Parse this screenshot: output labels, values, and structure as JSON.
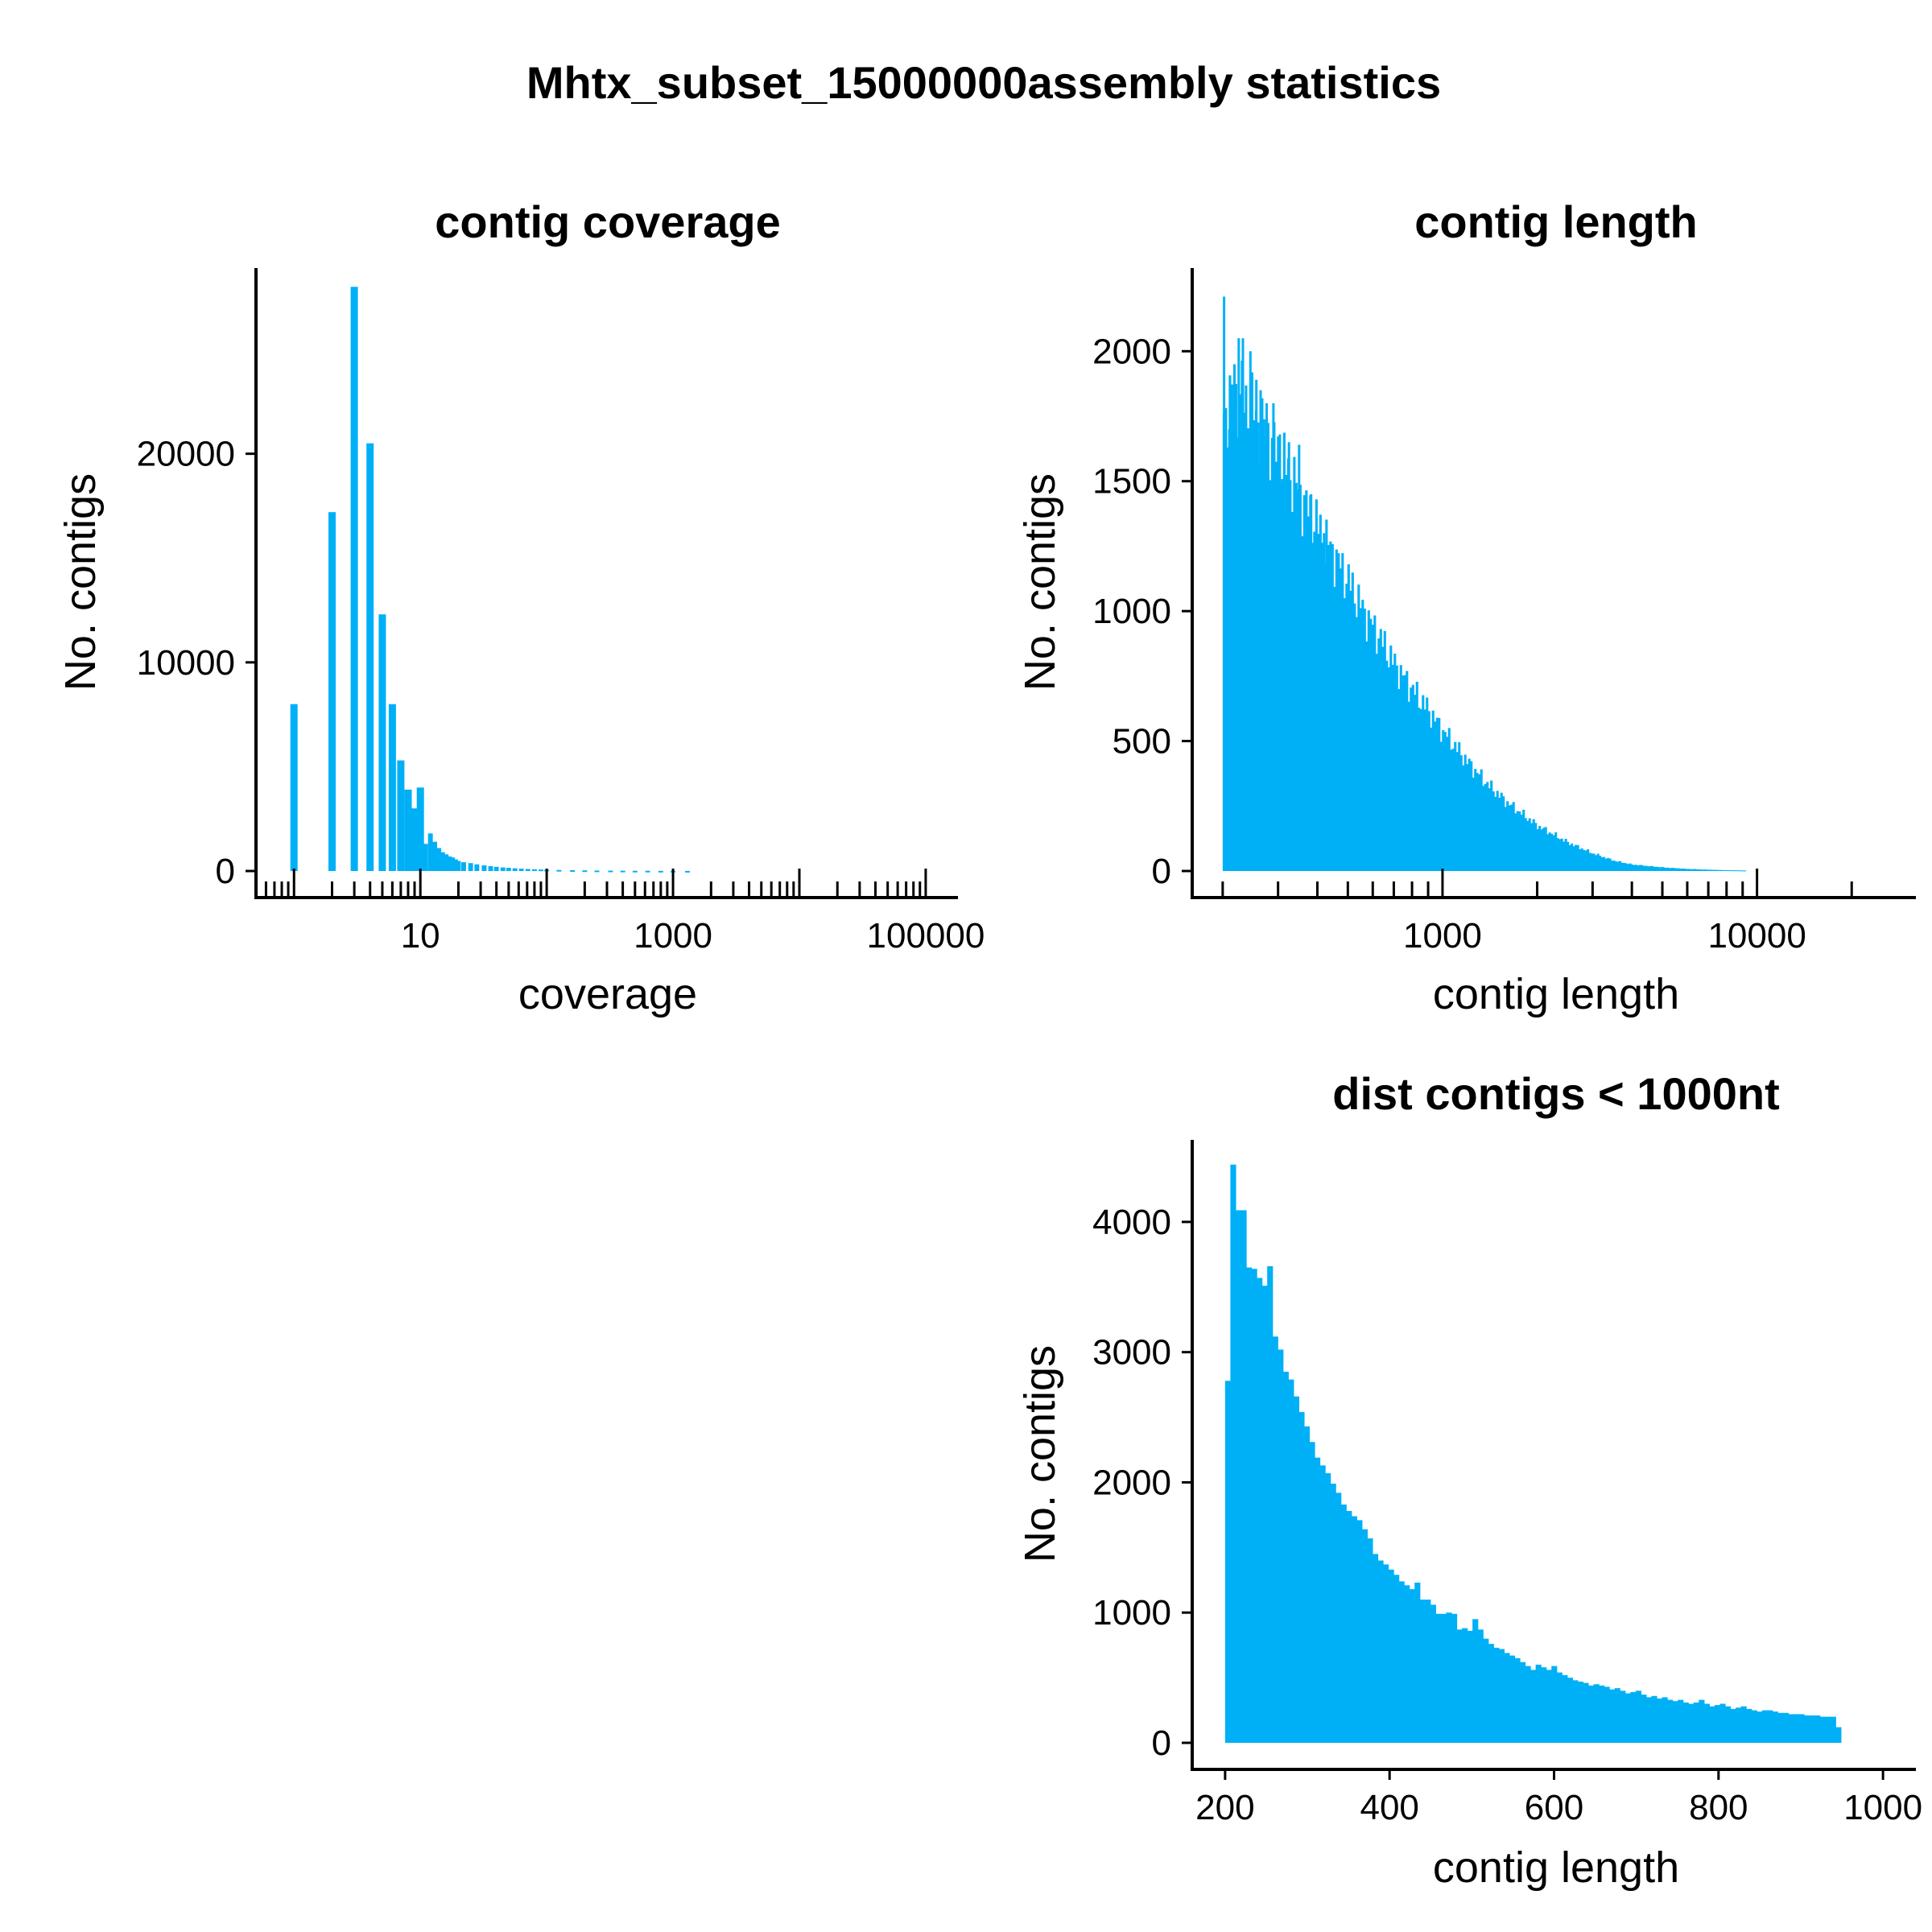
{
  "title": "Mhtx_subset_15000000assembly statistics",
  "colors": {
    "bar": "#00B0F6",
    "axis": "#000000",
    "background": "#FFFFFF"
  },
  "chart_data": [
    {
      "id": "coverage",
      "type": "bar",
      "title": "contig coverage",
      "xlabel": "coverage",
      "ylabel": "No. contigs",
      "x_scale": "log10",
      "xlim": [
        0.5,
        180000
      ],
      "ylim": [
        0,
        28900
      ],
      "x_major_ticks": [
        1,
        10,
        100,
        1000,
        10000,
        100000
      ],
      "x_tick_labels": [
        {
          "value": 10,
          "label": "10"
        },
        {
          "value": 1000,
          "label": "1000"
        },
        {
          "value": 100000,
          "label": "100000"
        }
      ],
      "y_ticks": [
        {
          "value": 0,
          "label": "0"
        },
        {
          "value": 10000,
          "label": "10000"
        },
        {
          "value": 20000,
          "label": "20000"
        }
      ],
      "bars": [
        {
          "x": 1,
          "y": 8000
        },
        {
          "x": 2,
          "y": 17200
        },
        {
          "x": 3,
          "y": 28000
        },
        {
          "x": 4,
          "y": 20500
        },
        {
          "x": 5,
          "y": 12300
        },
        {
          "x": 6,
          "y": 8000
        },
        {
          "x": 7,
          "y": 5300
        },
        {
          "x": 8,
          "y": 3900
        },
        {
          "x": 9,
          "y": 3000
        },
        {
          "x": 10,
          "y": 4000
        },
        {
          "x": 11,
          "y": 1300
        },
        {
          "x": 12,
          "y": 1800
        },
        {
          "x": 13,
          "y": 1400
        },
        {
          "x": 14,
          "y": 1100
        },
        {
          "x": 15,
          "y": 900
        },
        {
          "x": 16,
          "y": 800
        },
        {
          "x": 17,
          "y": 700
        },
        {
          "x": 18,
          "y": 650
        },
        {
          "x": 19,
          "y": 550
        },
        {
          "x": 20,
          "y": 480
        },
        {
          "x": 22,
          "y": 420
        },
        {
          "x": 25,
          "y": 380
        },
        {
          "x": 28,
          "y": 320
        },
        {
          "x": 32,
          "y": 270
        },
        {
          "x": 36,
          "y": 230
        },
        {
          "x": 40,
          "y": 200
        },
        {
          "x": 45,
          "y": 170
        },
        {
          "x": 50,
          "y": 150
        },
        {
          "x": 56,
          "y": 130
        },
        {
          "x": 63,
          "y": 110
        },
        {
          "x": 71,
          "y": 95
        },
        {
          "x": 80,
          "y": 80
        },
        {
          "x": 90,
          "y": 70
        },
        {
          "x": 100,
          "y": 60
        },
        {
          "x": 125,
          "y": 50
        },
        {
          "x": 160,
          "y": 40
        },
        {
          "x": 200,
          "y": 30
        },
        {
          "x": 250,
          "y": 25
        },
        {
          "x": 320,
          "y": 20
        },
        {
          "x": 400,
          "y": 15
        },
        {
          "x": 500,
          "y": 12
        },
        {
          "x": 630,
          "y": 10
        },
        {
          "x": 800,
          "y": 8
        },
        {
          "x": 1000,
          "y": 6
        },
        {
          "x": 1300,
          "y": 4
        }
      ]
    },
    {
      "id": "length",
      "type": "bar",
      "title": "contig length",
      "xlabel": "contig length",
      "ylabel": "No. contigs",
      "x_scale": "log10",
      "xlim": [
        160,
        32000
      ],
      "ylim": [
        0,
        2320
      ],
      "x_major_ticks": [
        1000,
        10000
      ],
      "x_minor_ticks": [
        200,
        300,
        400,
        500,
        600,
        700,
        800,
        900,
        2000,
        3000,
        4000,
        5000,
        6000,
        7000,
        8000,
        9000,
        20000
      ],
      "x_tick_labels": [
        {
          "value": 1000,
          "label": "1000"
        },
        {
          "value": 10000,
          "label": "10000"
        }
      ],
      "y_ticks": [
        {
          "value": 0,
          "label": "0"
        },
        {
          "value": 500,
          "label": "500"
        },
        {
          "value": 1000,
          "label": "1000"
        },
        {
          "value": 1500,
          "label": "1500"
        },
        {
          "value": 2000,
          "label": "2000"
        }
      ],
      "x_start": 200,
      "x_end": 9200,
      "bin_count": 260,
      "profile": [
        [
          200,
          1750
        ],
        [
          210,
          1800
        ],
        [
          230,
          1830
        ],
        [
          250,
          1760
        ],
        [
          270,
          1700
        ],
        [
          300,
          1600
        ],
        [
          330,
          1520
        ],
        [
          360,
          1420
        ],
        [
          400,
          1330
        ],
        [
          450,
          1220
        ],
        [
          500,
          1120
        ],
        [
          560,
          1000
        ],
        [
          630,
          900
        ],
        [
          700,
          800
        ],
        [
          800,
          700
        ],
        [
          900,
          620
        ],
        [
          1000,
          540
        ],
        [
          1200,
          420
        ],
        [
          1400,
          330
        ],
        [
          1600,
          265
        ],
        [
          2000,
          175
        ],
        [
          2500,
          110
        ],
        [
          3000,
          68
        ],
        [
          3500,
          40
        ],
        [
          4000,
          25
        ],
        [
          5000,
          14
        ],
        [
          6000,
          8
        ],
        [
          7000,
          5
        ],
        [
          8000,
          3
        ],
        [
          9200,
          2
        ]
      ],
      "spikes": [
        {
          "x": 202,
          "y": 2210
        },
        {
          "x": 210,
          "y": 1700
        },
        {
          "x": 218,
          "y": 1950
        },
        {
          "x": 225,
          "y": 2050
        },
        {
          "x": 232,
          "y": 2050
        },
        {
          "x": 245,
          "y": 2000
        },
        {
          "x": 256,
          "y": 1890
        },
        {
          "x": 264,
          "y": 1850
        },
        {
          "x": 276,
          "y": 1800
        },
        {
          "x": 290,
          "y": 1800
        },
        {
          "x": 304,
          "y": 1680
        },
        {
          "x": 325,
          "y": 1650
        },
        {
          "x": 350,
          "y": 1640
        },
        {
          "x": 382,
          "y": 1450
        },
        {
          "x": 420,
          "y": 1300
        },
        {
          "x": 470,
          "y": 1160
        }
      ]
    },
    {
      "id": "dist",
      "type": "bar",
      "title": "dist contigs < 1000nt",
      "xlabel": "contig length",
      "ylabel": "No. contigs",
      "x_scale": "linear",
      "xlim": [
        160,
        1040
      ],
      "ylim": [
        0,
        4630
      ],
      "x_ticks": [
        {
          "value": 200,
          "label": "200"
        },
        {
          "value": 400,
          "label": "400"
        },
        {
          "value": 600,
          "label": "600"
        },
        {
          "value": 800,
          "label": "800"
        },
        {
          "value": 1000,
          "label": "1000"
        }
      ],
      "y_ticks": [
        {
          "value": 0,
          "label": "0"
        },
        {
          "value": 1000,
          "label": "1000"
        },
        {
          "value": 2000,
          "label": "2000"
        },
        {
          "value": 3000,
          "label": "3000"
        },
        {
          "value": 4000,
          "label": "4000"
        }
      ],
      "bin_start": 200,
      "bin_width": 6.4,
      "values": [
        2780,
        4440,
        4090,
        4090,
        3650,
        3640,
        3570,
        3510,
        3660,
        3120,
        3020,
        2850,
        2790,
        2660,
        2540,
        2430,
        2310,
        2190,
        2130,
        2070,
        1990,
        1920,
        1830,
        1780,
        1740,
        1710,
        1640,
        1570,
        1450,
        1400,
        1370,
        1330,
        1290,
        1240,
        1210,
        1180,
        1230,
        1100,
        1100,
        1060,
        990,
        990,
        1000,
        990,
        870,
        880,
        860,
        950,
        870,
        800,
        760,
        730,
        720,
        690,
        670,
        650,
        620,
        590,
        560,
        600,
        580,
        560,
        590,
        540,
        520,
        500,
        480,
        470,
        460,
        440,
        450,
        440,
        430,
        410,
        420,
        400,
        380,
        390,
        400,
        370,
        350,
        360,
        340,
        350,
        330,
        320,
        330,
        310,
        300,
        310,
        330,
        300,
        280,
        290,
        300,
        280,
        260,
        270,
        280,
        260,
        250,
        240,
        250,
        250,
        240,
        230,
        230,
        220,
        220,
        220,
        210,
        210,
        210,
        200,
        200,
        200,
        120
      ]
    }
  ]
}
